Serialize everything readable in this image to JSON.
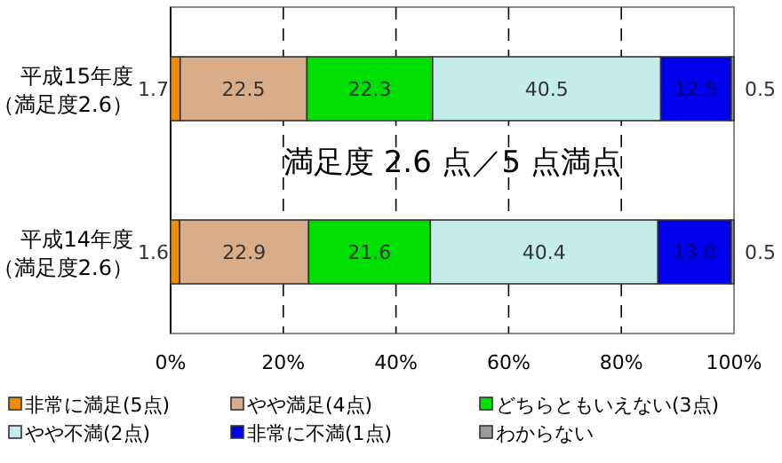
{
  "chart_data": {
    "type": "bar",
    "orientation": "horizontal",
    "stacked": true,
    "categories": [
      "平成15年度（満足度2.6）",
      "平成14年度（満足度2.6）"
    ],
    "series": [
      {
        "name": "非常に満足(5点)",
        "color": "#f08a00",
        "values": [
          1.7,
          1.6
        ],
        "value_labels": [
          "1.7",
          "1.6"
        ]
      },
      {
        "name": "やや満足(4点)",
        "color": "#d9ad8a",
        "values": [
          22.5,
          22.9
        ],
        "value_labels": [
          "22.5",
          "22.9"
        ]
      },
      {
        "name": "どちらともいえない(3点)",
        "color": "#00e000",
        "values": [
          22.3,
          21.6
        ],
        "value_labels": [
          "22.3",
          "21.6"
        ]
      },
      {
        "name": "やや不満(2点)",
        "color": "#c4ecec",
        "values": [
          40.5,
          40.4
        ],
        "value_labels": [
          "40.5",
          "40.4"
        ]
      },
      {
        "name": "非常に不満(1点)",
        "color": "#0000ee",
        "values": [
          12.5,
          13.0
        ],
        "value_labels": [
          "12.5",
          "13.0"
        ]
      },
      {
        "name": "わからない",
        "color": "#9a9a9a",
        "values": [
          0.5,
          0.5
        ],
        "value_labels": [
          "0.5",
          "0.5"
        ]
      }
    ],
    "xlim": [
      0,
      100
    ],
    "xticks": [
      {
        "value": 0,
        "label": "0%"
      },
      {
        "value": 20,
        "label": "20%"
      },
      {
        "value": 40,
        "label": "40%"
      },
      {
        "value": 60,
        "label": "60%"
      },
      {
        "value": 80,
        "label": "80%"
      },
      {
        "value": 100,
        "label": "100%"
      }
    ],
    "grid": "x",
    "legend": "bottom",
    "annotations": [
      "満足度 2.6 点／5 点満点"
    ]
  }
}
